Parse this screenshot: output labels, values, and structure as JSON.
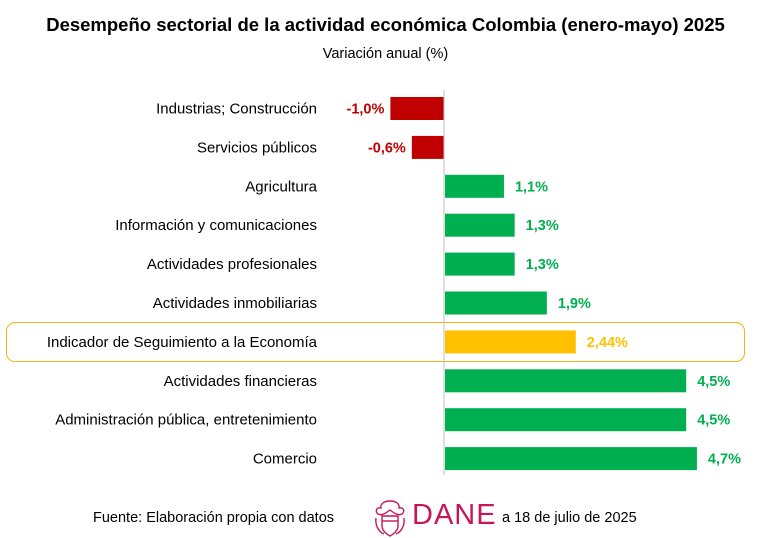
{
  "title": "Desempeño sectorial de la actividad económica Colombia (enero-mayo) 2025",
  "subtitle": "Variación anual (%)",
  "footer": {
    "source_prefix": "Fuente: Elaboración propia con datos",
    "logo_text": "DANE",
    "source_suffix": "a 18 de julio de 2025"
  },
  "colors": {
    "negative": "#c00000",
    "positive": "#00b050",
    "highlight": "#ffc000",
    "highlight_border": "#f0b418",
    "logo": "#c6165a"
  },
  "chart_data": {
    "type": "bar",
    "orientation": "horizontal",
    "categories": [
      "Industrias; Construcción",
      "Servicios públicos",
      "Agricultura",
      "Información y comunicaciones",
      "Actividades profesionales",
      "Actividades inmobiliarias",
      "Indicador de Seguimiento a la Economía",
      "Actividades financieras",
      "Administración pública, entretenimiento",
      "Comercio"
    ],
    "values": [
      -1.0,
      -0.6,
      1.1,
      1.3,
      1.3,
      1.9,
      2.44,
      4.5,
      4.5,
      4.7
    ],
    "labels": [
      "-1,0%",
      "-0,6%",
      "1,1%",
      "1,3%",
      "1,3%",
      "1,9%",
      "2,44%",
      "4,5%",
      "4,5%",
      "4,7%"
    ],
    "highlighted_category": "Indicador de Seguimiento a la Economía",
    "xlim": [
      -1.0,
      4.7
    ],
    "grid": false,
    "legend": "none"
  }
}
